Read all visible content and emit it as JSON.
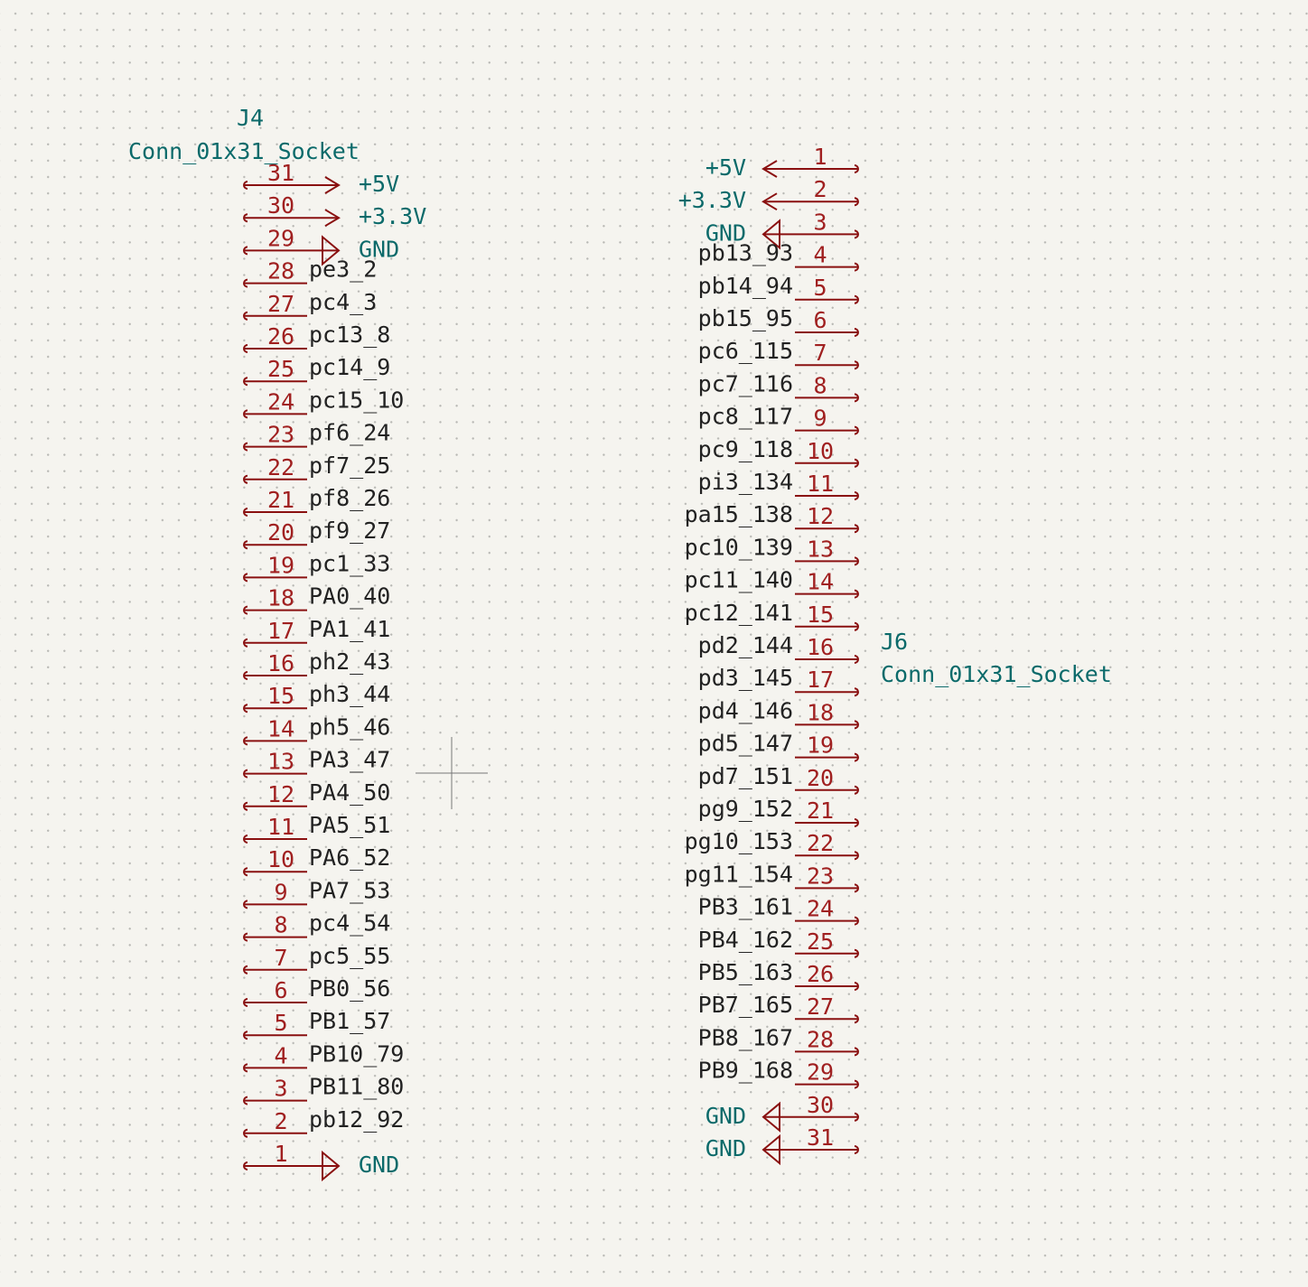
{
  "symbols": [
    {
      "reference": "J4",
      "value": "Conn_01x31_Socket",
      "pins": [
        {
          "number": "31",
          "power": "+5V"
        },
        {
          "number": "30",
          "power": "+3.3V"
        },
        {
          "number": "29",
          "power": "GND"
        },
        {
          "number": "28",
          "label": "pe3_2"
        },
        {
          "number": "27",
          "label": "pc4_3"
        },
        {
          "number": "26",
          "label": "pc13_8"
        },
        {
          "number": "25",
          "label": "pc14_9"
        },
        {
          "number": "24",
          "label": "pc15_10"
        },
        {
          "number": "23",
          "label": "pf6_24"
        },
        {
          "number": "22",
          "label": "pf7_25"
        },
        {
          "number": "21",
          "label": "pf8_26"
        },
        {
          "number": "20",
          "label": "pf9_27"
        },
        {
          "number": "19",
          "label": "pc1_33"
        },
        {
          "number": "18",
          "label": "PA0_40"
        },
        {
          "number": "17",
          "label": "PA1_41"
        },
        {
          "number": "16",
          "label": "ph2_43"
        },
        {
          "number": "15",
          "label": "ph3_44"
        },
        {
          "number": "14",
          "label": "ph5_46"
        },
        {
          "number": "13",
          "label": "PA3_47"
        },
        {
          "number": "12",
          "label": "PA4_50"
        },
        {
          "number": "11",
          "label": "PA5_51"
        },
        {
          "number": "10",
          "label": "PA6_52"
        },
        {
          "number": "9",
          "label": "PA7_53"
        },
        {
          "number": "8",
          "label": "pc4_54"
        },
        {
          "number": "7",
          "label": "pc5_55"
        },
        {
          "number": "6",
          "label": "PB0_56"
        },
        {
          "number": "5",
          "label": "PB1_57"
        },
        {
          "number": "4",
          "label": "PB10_79"
        },
        {
          "number": "3",
          "label": "PB11_80"
        },
        {
          "number": "2",
          "label": "pb12_92"
        },
        {
          "number": "1",
          "power": "GND"
        }
      ]
    },
    {
      "reference": "J6",
      "value": "Conn_01x31_Socket",
      "pins": [
        {
          "number": "1",
          "power": "+5V"
        },
        {
          "number": "2",
          "power": "+3.3V"
        },
        {
          "number": "3",
          "power": "GND"
        },
        {
          "number": "4",
          "label": "pb13_93"
        },
        {
          "number": "5",
          "label": "pb14_94"
        },
        {
          "number": "6",
          "label": "pb15_95"
        },
        {
          "number": "7",
          "label": "pc6_115"
        },
        {
          "number": "8",
          "label": "pc7_116"
        },
        {
          "number": "9",
          "label": "pc8_117"
        },
        {
          "number": "10",
          "label": "pc9_118"
        },
        {
          "number": "11",
          "label": "pi3_134"
        },
        {
          "number": "12",
          "label": "pa15_138"
        },
        {
          "number": "13",
          "label": "pc10_139"
        },
        {
          "number": "14",
          "label": "pc11_140"
        },
        {
          "number": "15",
          "label": "pc12_141"
        },
        {
          "number": "16",
          "label": "pd2_144"
        },
        {
          "number": "17",
          "label": "pd3_145"
        },
        {
          "number": "18",
          "label": "pd4_146"
        },
        {
          "number": "19",
          "label": "pd5_147"
        },
        {
          "number": "20",
          "label": "pd7_151"
        },
        {
          "number": "21",
          "label": "pg9_152"
        },
        {
          "number": "22",
          "label": "pg10_153"
        },
        {
          "number": "23",
          "label": "pg11_154"
        },
        {
          "number": "24",
          "label": "PB3_161"
        },
        {
          "number": "25",
          "label": "PB4_162"
        },
        {
          "number": "26",
          "label": "PB5_163"
        },
        {
          "number": "27",
          "label": "PB7_165"
        },
        {
          "number": "28",
          "label": "PB8_167"
        },
        {
          "number": "29",
          "label": "PB9_168"
        },
        {
          "number": "30",
          "power": "GND"
        },
        {
          "number": "31",
          "power": "GND"
        }
      ]
    }
  ]
}
